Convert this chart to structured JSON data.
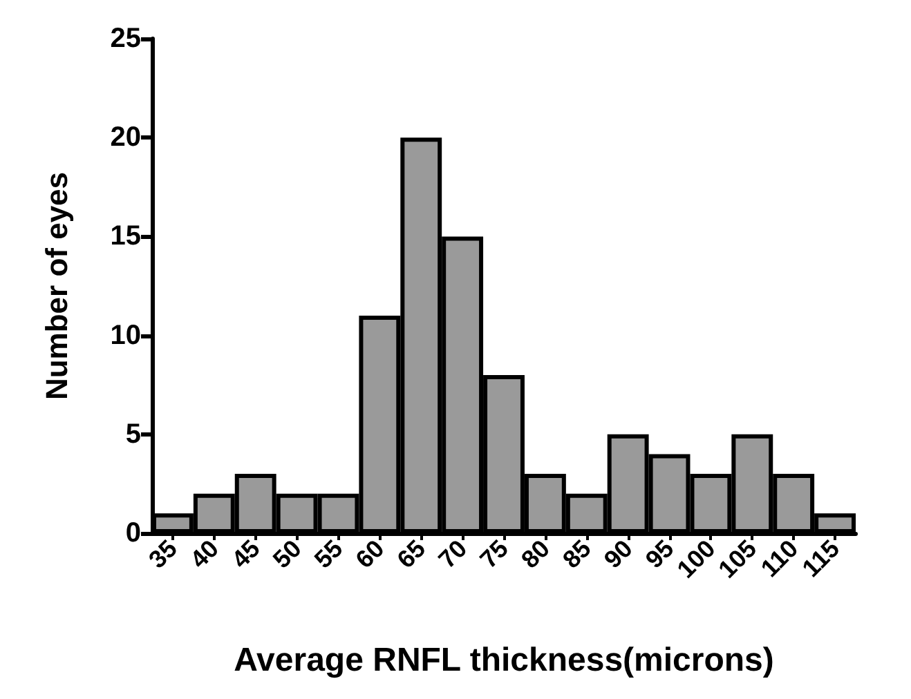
{
  "chart_data": {
    "type": "bar",
    "xlabel": "Average RNFL thickness(microns)",
    "ylabel": "Number of eyes",
    "categories": [
      "35",
      "40",
      "45",
      "50",
      "55",
      "60",
      "65",
      "70",
      "75",
      "80",
      "85",
      "90",
      "95",
      "100",
      "105",
      "110",
      "115"
    ],
    "values": [
      1,
      2,
      3,
      2,
      2,
      11,
      20,
      15,
      8,
      3,
      2,
      5,
      4,
      3,
      5,
      3,
      1
    ],
    "color": "#9a9a9a",
    "ylim": [
      0,
      25
    ],
    "yticks": [
      0,
      5,
      10,
      15,
      20,
      25
    ],
    "grid": false
  }
}
